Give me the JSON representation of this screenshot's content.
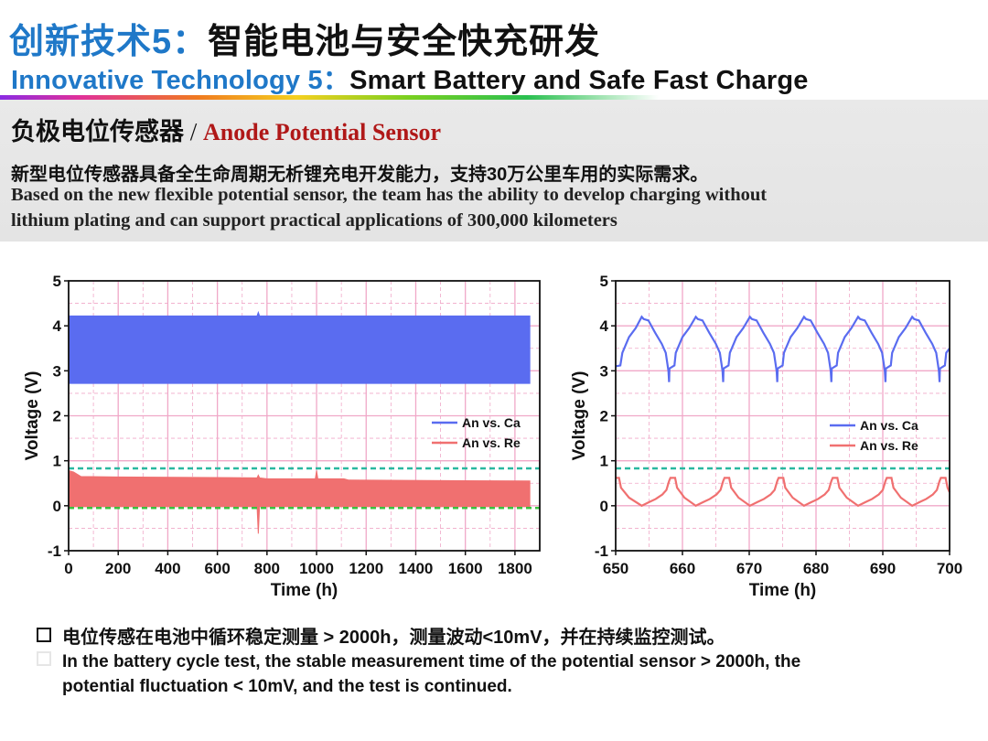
{
  "header": {
    "title_cn_prefix": "创新技术5：",
    "title_cn_main": "智能电池与安全快充研发",
    "title_en_prefix": "Innovative Technology 5：",
    "title_en_main": "Smart Battery and Safe Fast Charge"
  },
  "section": {
    "subtitle_cn": "负极电位传感器",
    "subtitle_sep": " / ",
    "subtitle_en": "Anode Potential Sensor",
    "desc_cn": "新型电位传感器具备全生命周期无析锂充电开发能力，支持30万公里车用的实际需求。",
    "desc_en_1": "Based on the new flexible potential sensor, the team has the ability to develop charging without",
    "desc_en_2": "lithium plating and can support practical applications of 300,000 kilometers"
  },
  "bullets": {
    "cn": "电位传感在电池中循环稳定测量 > 2000h，测量波动<10mV，并在持续监控测试。",
    "en_1": "In the battery cycle test, the stable measurement time of the potential sensor > 2000h, the",
    "en_2": "potential fluctuation  < 10mV, and the test is continued."
  },
  "colors": {
    "blue": "#5a6cf0",
    "red": "#f07070",
    "ref_teal": "#2ab8a0",
    "ref_green": "#3cc040",
    "grid": "#f0a8c8"
  },
  "chart_data": [
    {
      "type": "area",
      "xlabel": "Time (h)",
      "ylabel": "Voltage (V)",
      "xlim": [
        0,
        1900
      ],
      "ylim": [
        -1,
        5
      ],
      "xticks": [
        "0",
        "200",
        "400",
        "600",
        "800",
        "1000",
        "1200",
        "1400",
        "1600",
        "1800"
      ],
      "xtick_values": [
        0,
        200,
        400,
        600,
        800,
        1000,
        1200,
        1400,
        1600,
        1800
      ],
      "yticks": [
        "-1",
        "0",
        "1",
        "2",
        "3",
        "4",
        "5"
      ],
      "ytick_values": [
        -1,
        0,
        1,
        2,
        3,
        4,
        5
      ],
      "grid": true,
      "legend": {
        "placement": "center-right",
        "entries": [
          "An vs. Ca",
          "An vs. Re"
        ]
      },
      "reference_lines": [
        0.83,
        -0.05
      ],
      "series": [
        {
          "name": "An vs. Ca",
          "band_x": [
            0,
            760,
            765,
            770,
            1860
          ],
          "band_upper": [
            4.22,
            4.22,
            4.3,
            4.22,
            4.22
          ],
          "band_lower": [
            2.72,
            2.72,
            2.72,
            2.72,
            2.72
          ]
        },
        {
          "name": "An vs. Re",
          "band_x": [
            0,
            20,
            50,
            200,
            760,
            765,
            770,
            800,
            995,
            1000,
            1005,
            1110,
            1130,
            1860
          ],
          "band_upper": [
            0.78,
            0.75,
            0.65,
            0.64,
            0.62,
            0.68,
            0.62,
            0.6,
            0.6,
            0.78,
            0.6,
            0.6,
            0.57,
            0.55
          ],
          "band_lower": [
            -0.02,
            -0.02,
            -0.02,
            -0.02,
            -0.02,
            -0.62,
            -0.02,
            -0.02,
            -0.02,
            -0.02,
            -0.02,
            -0.02,
            -0.02,
            -0.02
          ]
        }
      ]
    },
    {
      "type": "line",
      "xlabel": "Time (h)",
      "ylabel": "Voltage (V)",
      "xlim": [
        650,
        700
      ],
      "ylim": [
        -1,
        5
      ],
      "xticks": [
        "650",
        "660",
        "670",
        "680",
        "690",
        "700"
      ],
      "xtick_values": [
        650,
        660,
        670,
        680,
        690,
        700
      ],
      "yticks": [
        "-1",
        "0",
        "1",
        "2",
        "3",
        "4",
        "5"
      ],
      "ytick_values": [
        -1,
        0,
        1,
        2,
        3,
        4,
        5
      ],
      "grid": true,
      "legend": {
        "placement": "center-right",
        "entries": [
          "An vs. Ca",
          "An vs. Re"
        ]
      },
      "reference_lines": [
        0.83
      ],
      "series": [
        {
          "name": "An vs. Ca",
          "x": [
            650,
            650.7,
            651,
            652,
            653,
            653.9,
            654.2,
            654.9,
            655.9,
            656.9,
            657.5,
            657.9,
            658.0,
            658.05,
            658.8,
            659,
            660,
            661,
            662,
            662.3,
            663,
            664,
            665,
            665.6,
            666,
            666.1,
            666.15,
            666.9,
            667.1,
            668.1,
            669.1,
            670.1,
            670.4,
            671.1,
            672.1,
            673.1,
            673.7,
            674.1,
            674.2,
            674.25,
            675,
            675.2,
            676.2,
            677.2,
            678.2,
            678.5,
            679.2,
            680.2,
            681.2,
            681.8,
            682.2,
            682.3,
            682.35,
            683.1,
            683.3,
            684.3,
            685.3,
            686.3,
            686.6,
            687.3,
            688.3,
            689.3,
            689.9,
            690.3,
            690.4,
            690.45,
            691.2,
            691.4,
            692.4,
            693.4,
            694.4,
            694.7,
            695.4,
            696.4,
            697.4,
            698.0,
            698.4,
            698.5,
            698.55,
            699.3,
            699.5,
            700
          ],
          "y": [
            3.1,
            3.12,
            3.4,
            3.75,
            3.95,
            4.2,
            4.15,
            4.12,
            3.85,
            3.6,
            3.4,
            3.0,
            2.75,
            3.05,
            3.12,
            3.4,
            3.75,
            3.95,
            4.2,
            4.15,
            4.12,
            3.85,
            3.6,
            3.4,
            3.0,
            2.75,
            3.05,
            3.12,
            3.4,
            3.75,
            3.95,
            4.2,
            4.15,
            4.12,
            3.85,
            3.6,
            3.4,
            3.0,
            2.75,
            3.05,
            3.12,
            3.4,
            3.75,
            3.95,
            4.2,
            4.15,
            4.12,
            3.85,
            3.6,
            3.4,
            3.0,
            2.75,
            3.05,
            3.12,
            3.4,
            3.75,
            3.95,
            4.2,
            4.15,
            4.12,
            3.85,
            3.6,
            3.4,
            3.0,
            2.75,
            3.05,
            3.12,
            3.4,
            3.75,
            3.95,
            4.2,
            4.15,
            4.12,
            3.85,
            3.6,
            3.4,
            3.0,
            2.75,
            3.05,
            3.12,
            3.4,
            3.5
          ]
        },
        {
          "name": "An vs. Re",
          "x": [
            650,
            650.5,
            650.8,
            652,
            653.9,
            655,
            656,
            657,
            657.6,
            658,
            658.2,
            658.9,
            659.2,
            660.3,
            662,
            663.1,
            664.1,
            665.1,
            665.7,
            666.1,
            666.3,
            667,
            667.3,
            668.4,
            670.1,
            671.2,
            672.2,
            673.2,
            673.8,
            674.2,
            674.4,
            675.1,
            675.4,
            676.5,
            678.2,
            679.3,
            680.3,
            681.3,
            681.9,
            682.3,
            682.5,
            683.2,
            683.5,
            684.6,
            686.3,
            687.4,
            688.4,
            689.4,
            690,
            690.4,
            690.6,
            691.3,
            691.6,
            692.7,
            694.4,
            695.5,
            696.5,
            697.5,
            698.1,
            698.5,
            698.7,
            699.4,
            699.7,
            700
          ],
          "y": [
            0.62,
            0.62,
            0.4,
            0.18,
            0.0,
            0.08,
            0.15,
            0.25,
            0.35,
            0.55,
            0.62,
            0.62,
            0.4,
            0.18,
            0.0,
            0.08,
            0.15,
            0.25,
            0.35,
            0.55,
            0.62,
            0.62,
            0.4,
            0.18,
            0.0,
            0.08,
            0.15,
            0.25,
            0.35,
            0.55,
            0.62,
            0.62,
            0.4,
            0.18,
            0.0,
            0.08,
            0.15,
            0.25,
            0.35,
            0.55,
            0.62,
            0.62,
            0.4,
            0.18,
            0.0,
            0.08,
            0.15,
            0.25,
            0.35,
            0.55,
            0.62,
            0.62,
            0.4,
            0.18,
            0.0,
            0.08,
            0.15,
            0.25,
            0.35,
            0.55,
            0.62,
            0.62,
            0.4,
            0.3
          ]
        }
      ]
    }
  ]
}
